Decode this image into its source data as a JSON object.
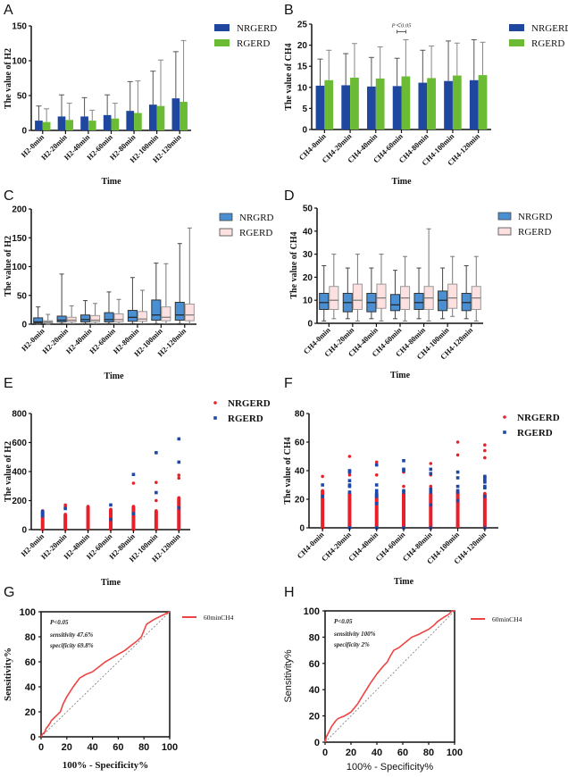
{
  "colors": {
    "nrgerd_bar": "#1f47a0",
    "rgerd_bar": "#6cbb34",
    "nrgrd_box": "#4a8fd2",
    "rgerd_box": "#fde0e0",
    "scatter_nrgerd": "#e8202a",
    "scatter_rgerd": "#1e48a8",
    "roc_line": "#ee4444"
  },
  "chart_data": [
    {
      "id": "A",
      "panel_letter": "A",
      "type": "bar",
      "title": "",
      "xlabel": "Time",
      "ylabel": "The value of H2",
      "ylim": [
        0,
        150
      ],
      "yticks": [
        0,
        50,
        100,
        150
      ],
      "categories": [
        "H2-0min",
        "H2-20min",
        "H2-40min",
        "H2-60min",
        "H2-80min",
        "H2-100min",
        "H2-120min"
      ],
      "series": [
        {
          "name": "NRGERD",
          "values": [
            14,
            20,
            20,
            22,
            28,
            37,
            46
          ],
          "error_upper": [
            35,
            51,
            47,
            51,
            70,
            85,
            113
          ]
        },
        {
          "name": "RGERD",
          "values": [
            12,
            15,
            14,
            17,
            25,
            35,
            41
          ],
          "error_upper": [
            31,
            39,
            29,
            39,
            71,
            101,
            129
          ]
        }
      ],
      "legend": [
        "NRGERD",
        "RGERD"
      ],
      "legend_position": "right"
    },
    {
      "id": "B",
      "panel_letter": "B",
      "type": "bar",
      "title": "",
      "xlabel": "Time",
      "ylabel": "The value of CH4",
      "ylim": [
        0,
        25
      ],
      "yticks": [
        0,
        5,
        10,
        15,
        20,
        25
      ],
      "categories": [
        "CH4-0min",
        "CH4-20min",
        "CH4-40min",
        "CH4-60min",
        "CH4-80min",
        "CH4-100min",
        "CH4-120min"
      ],
      "series": [
        {
          "name": "NRGERD",
          "values": [
            10.4,
            10.5,
            10.2,
            10.3,
            11.1,
            11.5,
            11.7
          ],
          "error_upper": [
            16.7,
            18.0,
            17.1,
            16.9,
            18.8,
            21.0,
            21.3
          ]
        },
        {
          "name": "RGERD",
          "values": [
            11.7,
            12.3,
            12.1,
            12.6,
            12.2,
            12.8,
            12.9
          ],
          "error_upper": [
            18.8,
            20.4,
            19.6,
            21.3,
            19.8,
            20.5,
            20.7
          ]
        }
      ],
      "annotations": [
        {
          "text": "P＜0.05",
          "category": "CH4-60min"
        }
      ],
      "legend": [
        "NRGERD",
        "RGERD"
      ],
      "legend_position": "right"
    },
    {
      "id": "C",
      "panel_letter": "C",
      "type": "box",
      "title": "",
      "xlabel": "Time",
      "ylabel": "The value of H2",
      "ylim": [
        0,
        200
      ],
      "yticks": [
        0,
        50,
        100,
        150,
        200
      ],
      "categories": [
        "H2-0min",
        "H2-20min",
        "H2-40min",
        "H2-60min",
        "H2-80min",
        "H2-100min",
        "H2-120min"
      ],
      "series": [
        {
          "name": "NRGRD",
          "boxes": [
            {
              "min": 0,
              "q1": 2,
              "median": 4,
              "q3": 11,
              "max": 30
            },
            {
              "min": 1,
              "q1": 4,
              "median": 7,
              "q3": 14,
              "max": 87
            },
            {
              "min": 1,
              "q1": 4,
              "median": 8,
              "q3": 16,
              "max": 41
            },
            {
              "min": 1,
              "q1": 4,
              "median": 8,
              "q3": 20,
              "max": 56
            },
            {
              "min": 1,
              "q1": 5,
              "median": 12,
              "q3": 24,
              "max": 81
            },
            {
              "min": 1,
              "q1": 7,
              "median": 16,
              "q3": 42,
              "max": 106
            },
            {
              "min": 1,
              "q1": 7,
              "median": 16,
              "q3": 38,
              "max": 140
            }
          ]
        },
        {
          "name": "RGERD",
          "boxes": [
            {
              "min": 0,
              "q1": 2,
              "median": 4,
              "q3": 6,
              "max": 17
            },
            {
              "min": 1,
              "q1": 4,
              "median": 7,
              "q3": 12,
              "max": 32
            },
            {
              "min": 1,
              "q1": 4,
              "median": 7,
              "q3": 15,
              "max": 36
            },
            {
              "min": 1,
              "q1": 4,
              "median": 8,
              "q3": 18,
              "max": 43
            },
            {
              "min": 1,
              "q1": 5,
              "median": 9,
              "q3": 22,
              "max": 59
            },
            {
              "min": 1,
              "q1": 6,
              "median": 12,
              "q3": 30,
              "max": 105
            },
            {
              "min": 1,
              "q1": 6,
              "median": 16,
              "q3": 35,
              "max": 167
            }
          ]
        }
      ],
      "legend": [
        "NRGRD",
        "RGERD"
      ],
      "legend_position": "right"
    },
    {
      "id": "D",
      "panel_letter": "D",
      "type": "box",
      "title": "",
      "xlabel": "Time",
      "ylabel": "The value of CH4",
      "ylim": [
        0,
        50
      ],
      "yticks": [
        0,
        10,
        20,
        30,
        40,
        50
      ],
      "categories": [
        "CH4-0min",
        "CH4-20min",
        "CH4-40min",
        "CH4-60min",
        "CH4-80min",
        "CH4-100min",
        "CH4-120min"
      ],
      "series": [
        {
          "name": "NRGRD",
          "boxes": [
            {
              "min": 1,
              "q1": 6,
              "median": 9,
              "q3": 13,
              "max": 25
            },
            {
              "min": 2,
              "q1": 5,
              "median": 9,
              "q3": 13,
              "max": 24
            },
            {
              "min": 2,
              "q1": 5,
              "median": 9,
              "q3": 13,
              "max": 24
            },
            {
              "min": 2,
              "q1": 5.5,
              "median": 8,
              "q3": 12.5,
              "max": 23
            },
            {
              "min": 2,
              "q1": 6,
              "median": 9,
              "q3": 13,
              "max": 24
            },
            {
              "min": 2,
              "q1": 5.5,
              "median": 10,
              "q3": 14,
              "max": 24
            },
            {
              "min": 2,
              "q1": 5.5,
              "median": 9,
              "q3": 13,
              "max": 25
            }
          ]
        },
        {
          "name": "RGERD",
          "boxes": [
            {
              "min": 2,
              "q1": 6,
              "median": 10,
              "q3": 16,
              "max": 30
            },
            {
              "min": 1,
              "q1": 6,
              "median": 10,
              "q3": 17,
              "max": 30
            },
            {
              "min": 1,
              "q1": 6.5,
              "median": 11,
              "q3": 17,
              "max": 30
            },
            {
              "min": 1,
              "q1": 6,
              "median": 11,
              "q3": 16,
              "max": 29
            },
            {
              "min": 1,
              "q1": 6,
              "median": 11,
              "q3": 16,
              "max": 41
            },
            {
              "min": 3,
              "q1": 6.5,
              "median": 11,
              "q3": 17,
              "max": 29
            },
            {
              "min": 1,
              "q1": 6,
              "median": 11,
              "q3": 16,
              "max": 29
            }
          ]
        }
      ],
      "legend": [
        "NRGRD",
        "RGERD"
      ],
      "legend_position": "right"
    },
    {
      "id": "E",
      "panel_letter": "E",
      "type": "scatter",
      "title": "",
      "xlabel": "Time",
      "ylabel": "The value of H2",
      "ylim": [
        0,
        800
      ],
      "yticks": [
        0,
        200,
        400,
        600,
        800
      ],
      "categories": [
        "H2-0min",
        "H2-20min",
        "H2-40min",
        "H2-60min",
        "H2-80min",
        "H2-100min",
        "H2-120min"
      ],
      "series": [
        {
          "name": "NRGERD",
          "points": [
            [
              0,
              75,
              60,
              45,
              30,
              20,
              10,
              5,
              85,
              130
            ],
            [
              0,
              90,
              70,
              50,
              30,
              15,
              5,
              105,
              160,
              170
            ],
            [
              0,
              95,
              70,
              50,
              30,
              15,
              5,
              125,
              160
            ],
            [
              0,
              100,
              80,
              60,
              40,
              20,
              5,
              120,
              140
            ],
            [
              0,
              100,
              80,
              60,
              40,
              20,
              5,
              120,
              160,
              320
            ],
            [
              0,
              130,
              100,
              80,
              60,
              40,
              20,
              5,
              200,
              325
            ],
            [
              0,
              170,
              140,
              120,
              100,
              80,
              60,
              40,
              20,
              5,
              175,
              215,
              220,
              355,
              375
            ]
          ]
        },
        {
          "name": "RGERD",
          "points": [
            [
              125,
              95,
              110
            ],
            [
              145
            ],
            [],
            [
              170,
              70
            ],
            [
              380,
              110
            ],
            [
              530,
              255
            ],
            [
              625,
              465,
              150
            ]
          ]
        }
      ],
      "legend": [
        "NRGERD",
        "RGERD"
      ],
      "legend_position": "right"
    },
    {
      "id": "F",
      "panel_letter": "F",
      "type": "scatter",
      "title": "",
      "xlabel": "Time",
      "ylabel": "The value of CH4",
      "ylim": [
        0,
        80
      ],
      "yticks": [
        0,
        20,
        40,
        60,
        80
      ],
      "categories": [
        "CH4-0min",
        "CH4-20min",
        "CH4-40min",
        "CH4-60min",
        "CH4-80min",
        "CH4-100min",
        "CH4-120min"
      ],
      "series": [
        {
          "name": "NRGERD",
          "points": [
            [
              0,
              4,
              8,
              12,
              16,
              20,
              24,
              26,
              36
            ],
            [
              0,
              4,
              8,
              12,
              16,
              20,
              24,
              37,
              50
            ],
            [
              0,
              4,
              8,
              12,
              16,
              20,
              24,
              37,
              46
            ],
            [
              0,
              4,
              8,
              12,
              16,
              20,
              24,
              29,
              39
            ],
            [
              0,
              4,
              8,
              12,
              16,
              20,
              24,
              29,
              37,
              45
            ],
            [
              2,
              6,
              10,
              14,
              18,
              22,
              25,
              51,
              60
            ],
            [
              0,
              4,
              8,
              12,
              16,
              20,
              24,
              49,
              54,
              58
            ]
          ]
        },
        {
          "name": "RGERD",
          "points": [
            [
              30,
              22
            ],
            [
              40,
              39,
              33,
              30,
              29,
              25,
              0
            ],
            [
              44,
              30,
              26,
              24,
              22,
              17,
              0
            ],
            [
              47,
              41,
              40,
              26,
              25,
              0
            ],
            [
              41,
              38,
              27,
              26,
              25,
              16,
              0
            ],
            [
              39,
              35,
              29,
              26,
              25,
              19
            ],
            [
              36,
              35,
              33,
              32,
              29,
              28,
              22,
              0
            ]
          ]
        }
      ],
      "legend": [
        "NRGERD",
        "RGERD"
      ],
      "legend_position": "right"
    },
    {
      "id": "G",
      "panel_letter": "G",
      "type": "line",
      "title": "",
      "xlabel": "100% - Specificity%",
      "ylabel": "Sensitivity%",
      "xlim": [
        0,
        100
      ],
      "ylim": [
        0,
        100
      ],
      "xticks": [
        0,
        20,
        40,
        60,
        80,
        100
      ],
      "yticks": [
        0,
        20,
        40,
        60,
        80,
        100
      ],
      "series": [
        {
          "name": "60minCH4",
          "x": [
            0,
            1,
            2,
            3,
            4,
            5,
            7,
            8,
            10,
            12,
            15,
            17,
            20,
            25,
            30,
            35,
            40,
            45,
            50,
            55,
            60,
            65,
            70,
            75,
            78,
            80,
            82,
            85,
            88,
            92,
            96,
            98,
            100
          ],
          "y": [
            0,
            2,
            3,
            4,
            7,
            8,
            11,
            13,
            15,
            17,
            20,
            26,
            32,
            40,
            47,
            50,
            52,
            56,
            60,
            63,
            66,
            69,
            73,
            77,
            80,
            85,
            90,
            92,
            94,
            96,
            98,
            99,
            100
          ]
        },
        {
          "name": "reference",
          "x": [
            0,
            100
          ],
          "y": [
            0,
            100
          ]
        }
      ],
      "annotations": [
        "P<0.05",
        "sensitivity 47.6%",
        "specificity 69.8%"
      ],
      "legend": [
        "60minCH4"
      ],
      "legend_position": "right"
    },
    {
      "id": "H",
      "panel_letter": "H",
      "type": "line",
      "title": "",
      "xlabel": "100% - Specificity%",
      "ylabel": "Sensitivity%",
      "xlim": [
        0,
        100
      ],
      "ylim": [
        0,
        100
      ],
      "xticks": [
        0,
        20,
        40,
        60,
        80,
        100
      ],
      "yticks": [
        0,
        20,
        40,
        60,
        80,
        100
      ],
      "series": [
        {
          "name": "60minCH4",
          "x": [
            0,
            1,
            3,
            5,
            8,
            10,
            15,
            20,
            25,
            30,
            35,
            40,
            45,
            48,
            50,
            53,
            57,
            62,
            67,
            72,
            76,
            80,
            84,
            87,
            90,
            93,
            95,
            97,
            98,
            100
          ],
          "y": [
            0,
            4,
            8,
            12,
            16,
            18,
            20,
            23,
            29,
            37,
            45,
            52,
            58,
            61,
            65,
            70,
            72,
            76,
            80,
            82,
            84,
            86,
            89,
            92,
            94,
            96,
            97,
            99,
            100,
            100
          ]
        },
        {
          "name": "reference",
          "x": [
            0,
            100
          ],
          "y": [
            0,
            100
          ]
        }
      ],
      "annotations": [
        "P<0.05",
        "sensitivity 100%",
        "specificity 2%"
      ],
      "legend": [
        "60minCH4"
      ],
      "legend_position": "right"
    }
  ]
}
